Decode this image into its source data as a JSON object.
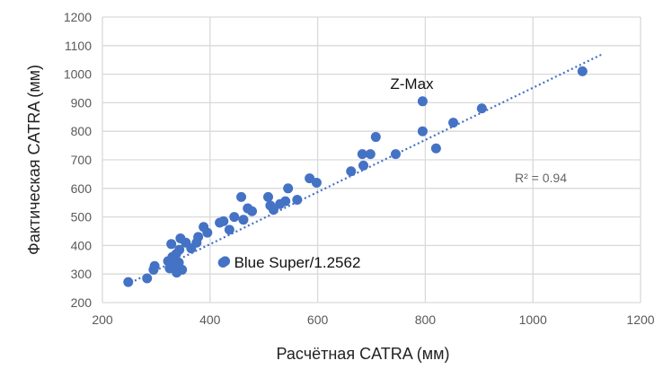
{
  "chart_data": {
    "type": "scatter",
    "title": "",
    "xlabel": "Расчётная CATRA (мм)",
    "ylabel": "Фактическая CATRA (мм)",
    "xlim": [
      200,
      1200
    ],
    "ylim": [
      200,
      1200
    ],
    "xticks": [
      200,
      400,
      600,
      800,
      1000,
      1200
    ],
    "yticks": [
      200,
      300,
      400,
      500,
      600,
      700,
      800,
      900,
      1000,
      1100,
      1200
    ],
    "grid": true,
    "color": "#4472C4",
    "points": [
      [
        248,
        272
      ],
      [
        283,
        285
      ],
      [
        295,
        315
      ],
      [
        297,
        328
      ],
      [
        322,
        345
      ],
      [
        325,
        320
      ],
      [
        328,
        405
      ],
      [
        330,
        360
      ],
      [
        332,
        335
      ],
      [
        335,
        350
      ],
      [
        337,
        370
      ],
      [
        338,
        305
      ],
      [
        340,
        325
      ],
      [
        342,
        340
      ],
      [
        343,
        385
      ],
      [
        345,
        425
      ],
      [
        348,
        315
      ],
      [
        355,
        410
      ],
      [
        365,
        390
      ],
      [
        375,
        410
      ],
      [
        378,
        430
      ],
      [
        388,
        465
      ],
      [
        395,
        445
      ],
      [
        418,
        480
      ],
      [
        425,
        485
      ],
      [
        428,
        345
      ],
      [
        424,
        340
      ],
      [
        436,
        455
      ],
      [
        445,
        500
      ],
      [
        458,
        570
      ],
      [
        462,
        490
      ],
      [
        470,
        530
      ],
      [
        478,
        520
      ],
      [
        508,
        570
      ],
      [
        512,
        540
      ],
      [
        518,
        525
      ],
      [
        530,
        545
      ],
      [
        540,
        555
      ],
      [
        545,
        600
      ],
      [
        562,
        560
      ],
      [
        585,
        635
      ],
      [
        598,
        620
      ],
      [
        662,
        660
      ],
      [
        683,
        720
      ],
      [
        685,
        680
      ],
      [
        698,
        720
      ],
      [
        708,
        780
      ],
      [
        745,
        720
      ],
      [
        795,
        905
      ],
      [
        795,
        800
      ],
      [
        820,
        740
      ],
      [
        852,
        830
      ],
      [
        905,
        880
      ],
      [
        1092,
        1010
      ]
    ],
    "trendline": {
      "from": [
        245,
        263
      ],
      "to": [
        1130,
        1071
      ],
      "style": "dotted"
    },
    "annotations": [
      {
        "text": "Z-Max",
        "x": 795,
        "y": 905
      },
      {
        "text": "Blue Super/1.2562",
        "x": 428,
        "y": 345
      }
    ],
    "r2_label": "R² = 0.94"
  }
}
